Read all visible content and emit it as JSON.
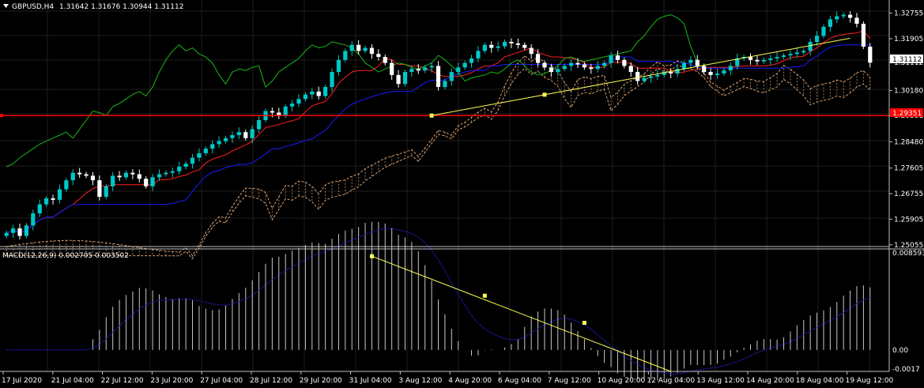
{
  "header": {
    "symbol": "GBPUSD,H4",
    "ohlc": "1.31642 1.31676 1.30944 1.31112"
  },
  "colors": {
    "bull": "#00c8c8",
    "bear": "#ffffff",
    "grid": "#1e1e1e",
    "tenkan": "#ff2020",
    "kijun": "#1a1aff",
    "chikou": "#18b818",
    "kumo": "#d8a070",
    "trend": "#ffff55",
    "hline": "#ff0000",
    "macd_hist": "#c8c8c8",
    "macd_signal": "#2020c8"
  },
  "price_axis": [
    "1.32755",
    "1.31905",
    "1.31112",
    "1.30180",
    "1.29351",
    "1.28480",
    "1.27605",
    "1.26755",
    "1.25905",
    "1.25055"
  ],
  "current_price_label": "1.31112",
  "hline_label": "1.29351",
  "macd": {
    "label": "MACD(12,26,9) 0.002705 0.003502",
    "axis": [
      "0.008593",
      "0.00",
      "-0.0017"
    ]
  },
  "time_axis": [
    "17 Jul 2020",
    "21 Jul 04:00",
    "22 Jul 12:00",
    "23 Jul 20:00",
    "27 Jul 04:00",
    "28 Jul 12:00",
    "29 Jul 20:00",
    "31 Jul 04:00",
    "3 Aug 12:00",
    "4 Aug 20:00",
    "6 Aug 04:00",
    "7 Aug 12:00",
    "10 Aug 20:00",
    "12 Aug 04:00",
    "13 Aug 12:00",
    "14 Aug 20:00",
    "18 Aug 04:00",
    "19 Aug 12:00"
  ],
  "chart_data": {
    "type": "candlestick",
    "title": "GBPUSD,H4",
    "ylim": [
      1.2505,
      1.3285
    ],
    "horizontal_line": 1.29351,
    "trendline": [
      1.2935,
      1.3192
    ],
    "closes": [
      1.2545,
      1.256,
      1.2535,
      1.257,
      1.261,
      1.264,
      1.266,
      1.2655,
      1.269,
      1.272,
      1.2745,
      1.274,
      1.2735,
      1.272,
      1.2665,
      1.27,
      1.2735,
      1.273,
      1.2745,
      1.274,
      1.2725,
      1.27,
      1.273,
      1.274,
      1.2745,
      1.275,
      1.2765,
      1.2775,
      1.2795,
      1.281,
      1.2825,
      1.284,
      1.285,
      1.286,
      1.287,
      1.288,
      1.286,
      1.289,
      1.292,
      1.295,
      1.2945,
      1.2935,
      1.2965,
      1.2975,
      1.299,
      1.3005,
      1.3015,
      1.3,
      1.303,
      1.308,
      1.312,
      1.315,
      1.317,
      1.315,
      1.316,
      1.314,
      1.313,
      1.311,
      1.307,
      1.304,
      1.308,
      1.309,
      1.3085,
      1.3095,
      1.31,
      1.303,
      1.305,
      1.308,
      1.3095,
      1.311,
      1.3125,
      1.315,
      1.317,
      1.316,
      1.3165,
      1.318,
      1.3175,
      1.317,
      1.316,
      1.314,
      1.311,
      1.3095,
      1.308,
      1.309,
      1.31,
      1.311,
      1.3105,
      1.3095,
      1.309,
      1.31,
      1.311,
      1.3135,
      1.312,
      1.31,
      1.308,
      1.305,
      1.306,
      1.3065,
      1.307,
      1.308,
      1.3075,
      1.309,
      1.311,
      1.312,
      1.31,
      1.308,
      1.307,
      1.3075,
      1.3085,
      1.31,
      1.3125,
      1.313,
      1.312,
      1.3115,
      1.312,
      1.3125,
      1.313,
      1.3135,
      1.314,
      1.3145,
      1.315,
      1.318,
      1.32,
      1.323,
      1.3255,
      1.3265,
      1.327,
      1.326,
      1.324,
      1.3164,
      1.3111
    ]
  }
}
